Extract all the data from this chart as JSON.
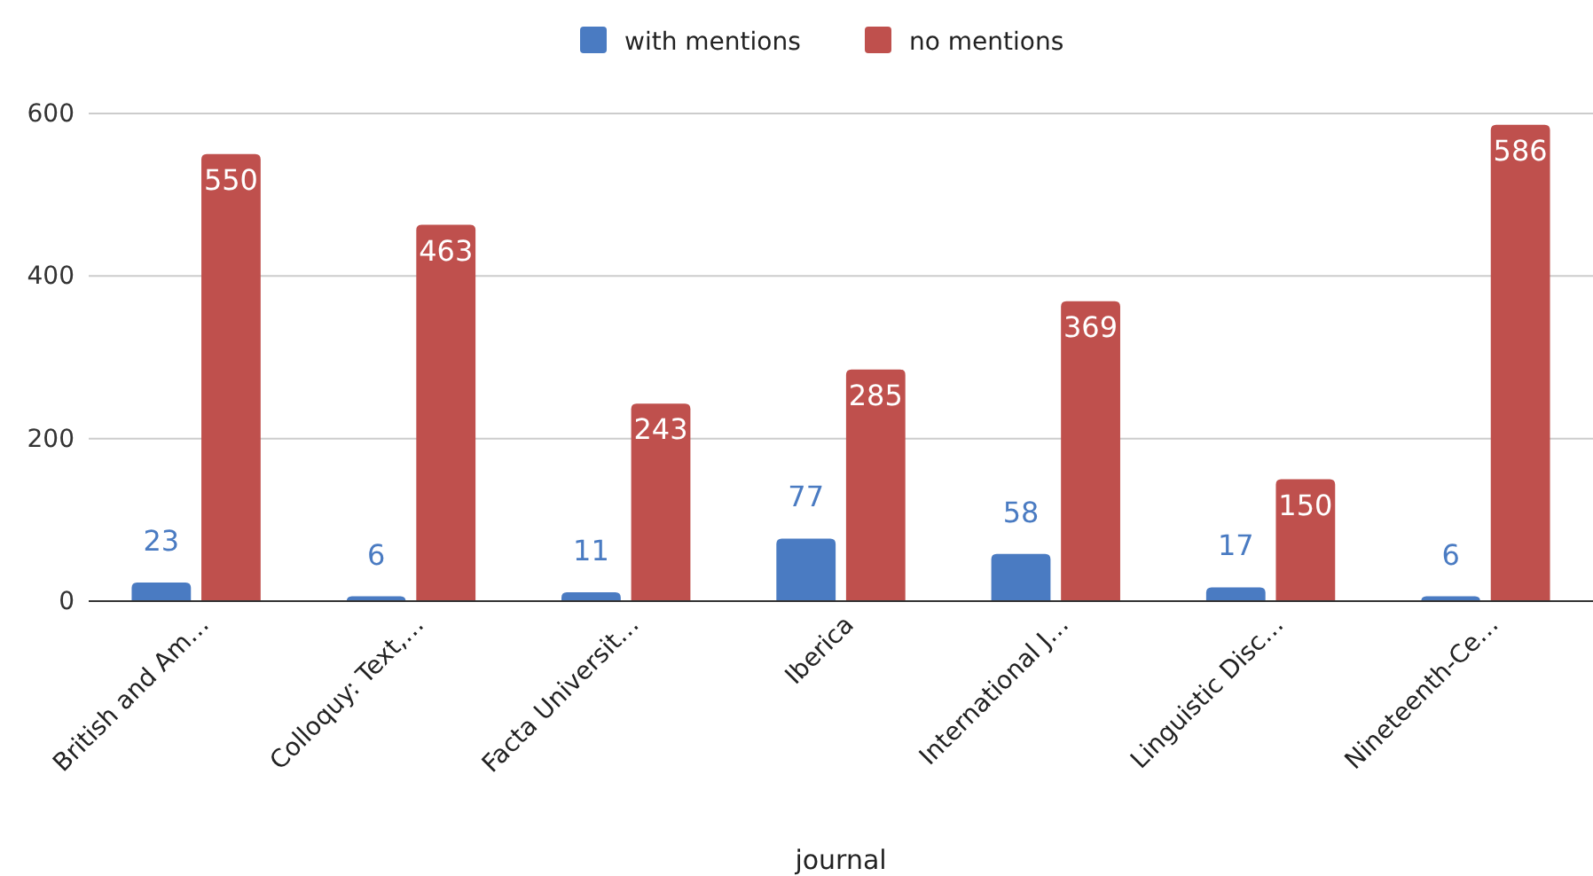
{
  "chart_data": {
    "type": "bar",
    "xlabel": "journal",
    "categories": [
      "British and Am…",
      "Colloquy: Text,…",
      "Facta Universit…",
      "Iberica",
      "International J…",
      "Linguistic Disc…",
      "Nineteenth-Ce…"
    ],
    "series": [
      {
        "name": "with mentions",
        "color": "#4a7bc2",
        "values": [
          23,
          6,
          11,
          77,
          58,
          17,
          6
        ]
      },
      {
        "name": "no mentions",
        "color": "#bf504d",
        "values": [
          550,
          463,
          243,
          285,
          369,
          150,
          586
        ]
      }
    ],
    "ylim": [
      0,
      600
    ],
    "yticks": [
      0,
      200,
      400,
      600
    ],
    "grid": "y",
    "legend": "top",
    "data_labels": true
  }
}
